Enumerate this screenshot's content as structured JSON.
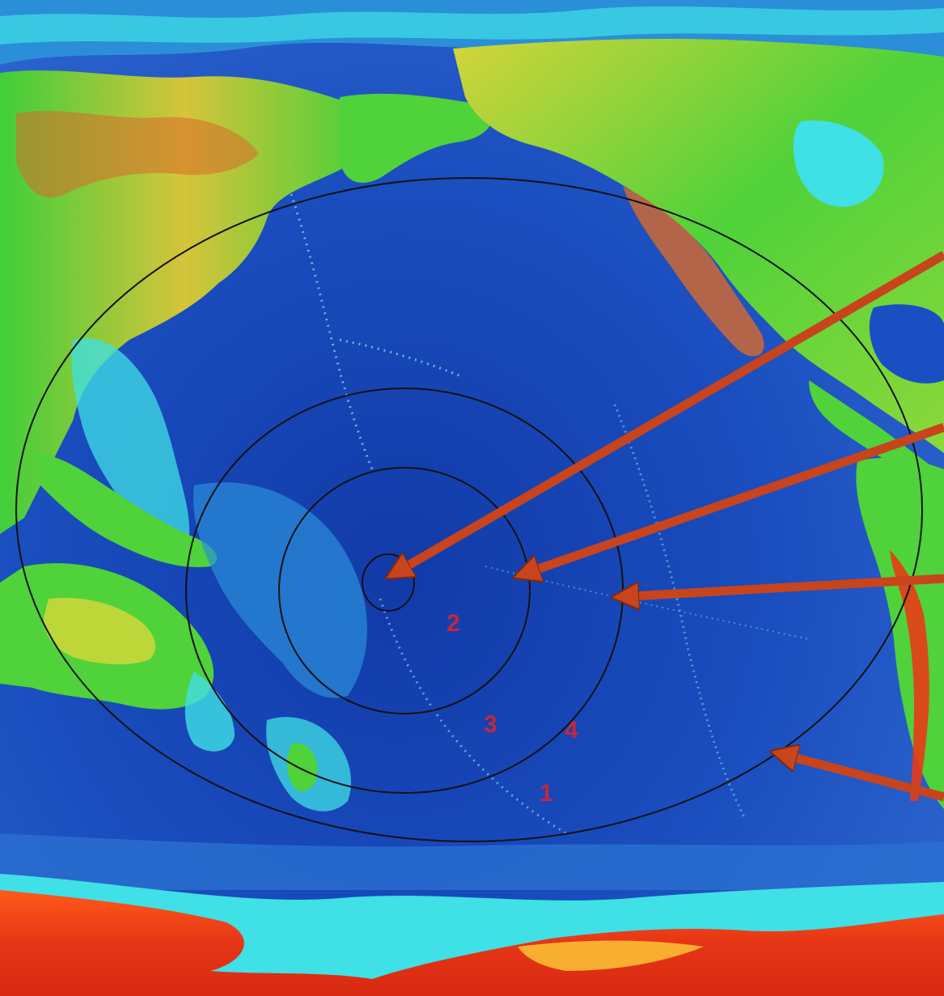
{
  "map": {
    "projection": "world-topographic-relief-pacific-centered",
    "colors": {
      "deep_ocean": "#0d2c9e",
      "ocean": "#1a4fc4",
      "shallow_ocean": "#2a8fd8",
      "shelf": "#3fe0e6",
      "lowland": "#3fcf3a",
      "upland": "#d8d838",
      "highland": "#d86a2a",
      "ice_cap": "#e83a16",
      "ring_stroke": "#111111",
      "arrow": "#c8441c",
      "arrow_outline": "#7a2a12",
      "marker_text": "#c2283a"
    },
    "icons": [
      "arrow-icon"
    ],
    "markers": [
      {
        "id": "marker-1",
        "text": "1"
      },
      {
        "id": "marker-2",
        "text": "2"
      },
      {
        "id": "marker-3",
        "text": "3"
      },
      {
        "id": "marker-4",
        "text": "4"
      }
    ]
  }
}
